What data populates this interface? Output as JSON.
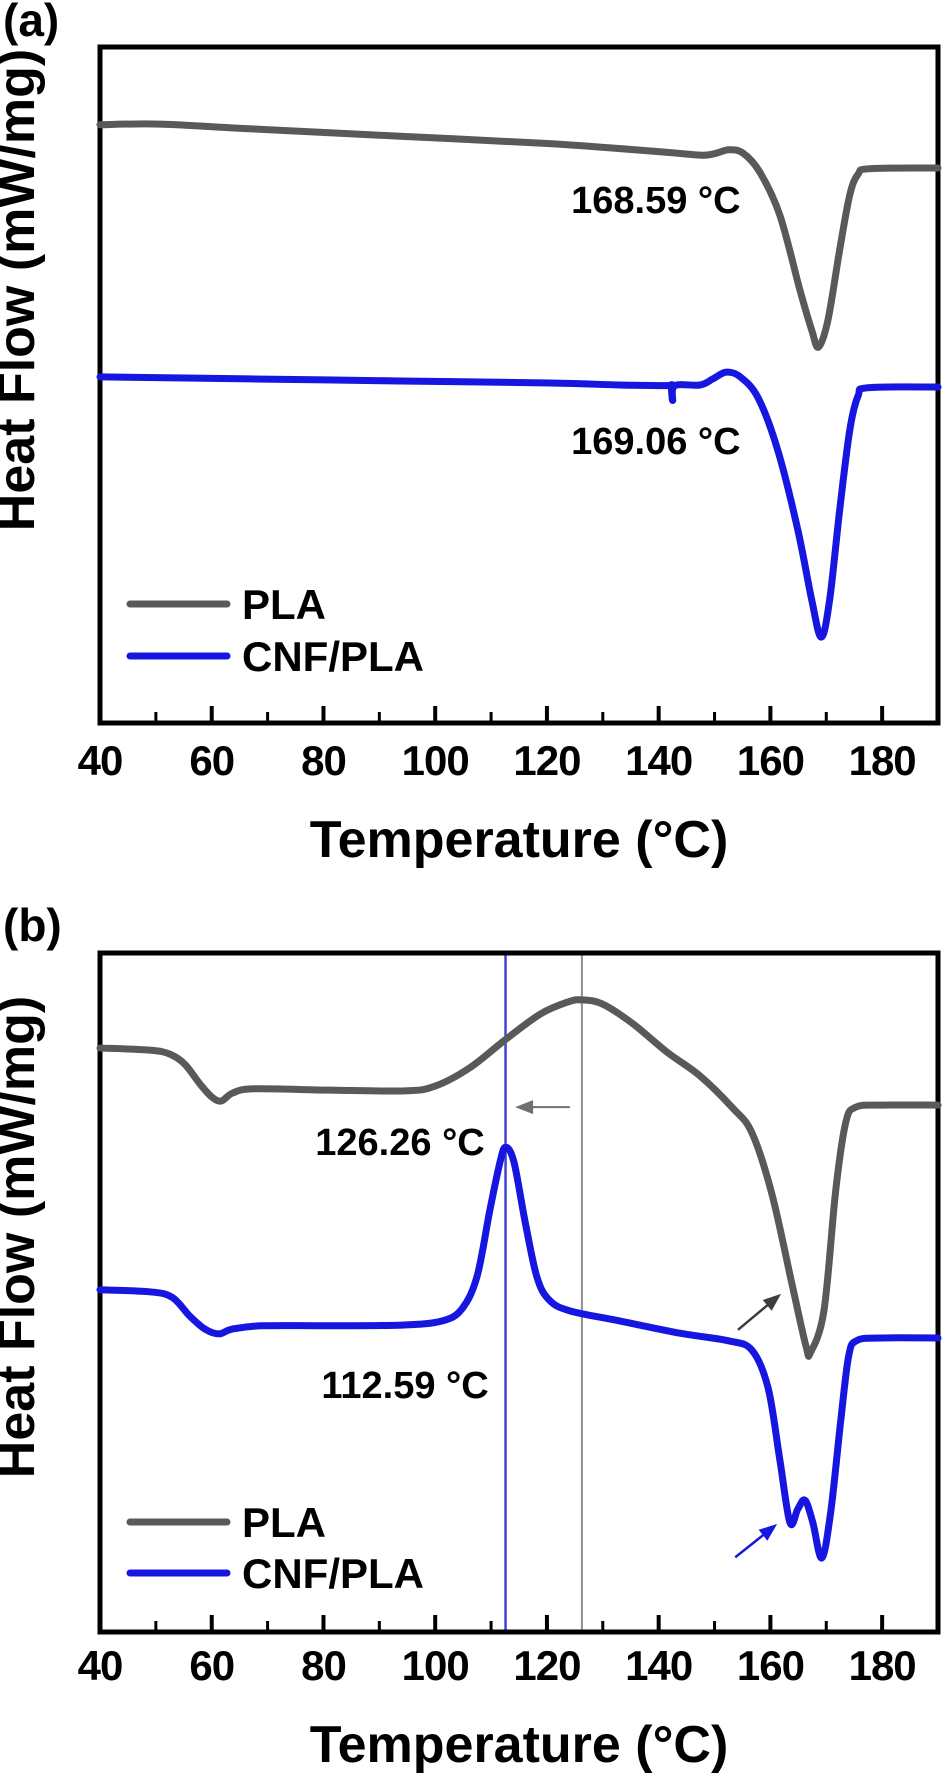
{
  "figure": {
    "description_visible_text_only": true,
    "background": "#ffffff",
    "series_colors": {
      "PLA": "#595959",
      "CNF/PLA": "#1616e0"
    }
  },
  "chart_data": [
    {
      "id": "a",
      "type": "line",
      "panel_label": "(a)",
      "xlabel": "Temperature (°C)",
      "ylabel": "Heat Flow (mW/mg)",
      "xlim": [
        40,
        190
      ],
      "x_major_ticks": [
        40,
        60,
        80,
        100,
        120,
        140,
        160,
        180
      ],
      "x_minor_ticks": [
        50,
        70,
        90,
        110,
        130,
        150,
        170,
        190
      ],
      "grid": false,
      "legend_position": "lower-left",
      "legend": [
        {
          "label": "PLA",
          "color": "#595959"
        },
        {
          "label": "CNF/PLA",
          "color": "#1616e0"
        }
      ],
      "annotations": [
        {
          "text": "168.59 °C",
          "color": "#595959",
          "t": 139.5,
          "v": 0.774
        },
        {
          "text": "169.06 °C",
          "color": "#1616e0",
          "t": 139.5,
          "v": 0.417
        }
      ],
      "vertical_lines": [],
      "arrows": [],
      "series": [
        {
          "name": "PLA",
          "color": "#595959",
          "points_t_v": [
            [
              40,
              0.885
            ],
            [
              50.7,
              0.886
            ],
            [
              66.8,
              0.879
            ],
            [
              93.7,
              0.868
            ],
            [
              120.5,
              0.857
            ],
            [
              140.2,
              0.845
            ],
            [
              147.4,
              0.84
            ],
            [
              149.9,
              0.842
            ],
            [
              152.6,
              0.848
            ],
            [
              155.1,
              0.843
            ],
            [
              158.1,
              0.815
            ],
            [
              161.7,
              0.751
            ],
            [
              165.3,
              0.64
            ],
            [
              167.4,
              0.581
            ],
            [
              168.6,
              0.556
            ],
            [
              170.3,
              0.596
            ],
            [
              172.4,
              0.7
            ],
            [
              174.2,
              0.781
            ],
            [
              175.7,
              0.812
            ],
            [
              177.8,
              0.82
            ],
            [
              190,
              0.821
            ]
          ]
        },
        {
          "name": "CNF/PLA",
          "color": "#1616e0",
          "points_t_v": [
            [
              40,
              0.512
            ],
            [
              66.8,
              0.509
            ],
            [
              93.7,
              0.506
            ],
            [
              120.5,
              0.503
            ],
            [
              133.1,
              0.5
            ],
            [
              141.7,
              0.499
            ],
            [
              142.2,
              0.499
            ],
            [
              142.5,
              0.477
            ],
            [
              142.9,
              0.499
            ],
            [
              147.4,
              0.5
            ],
            [
              149.7,
              0.509
            ],
            [
              152.1,
              0.519
            ],
            [
              154.6,
              0.512
            ],
            [
              157.8,
              0.481
            ],
            [
              161.3,
              0.404
            ],
            [
              164.9,
              0.286
            ],
            [
              167.4,
              0.182
            ],
            [
              169.1,
              0.127
            ],
            [
              170.6,
              0.182
            ],
            [
              172.4,
              0.315
            ],
            [
              174.2,
              0.433
            ],
            [
              175.7,
              0.484
            ],
            [
              177.5,
              0.496
            ],
            [
              190,
              0.497
            ]
          ]
        }
      ]
    },
    {
      "id": "b",
      "type": "line",
      "panel_label": "(b)",
      "xlabel": "Temperature (°C)",
      "ylabel": "Heat Flow (mW/mg)",
      "xlim": [
        40,
        190
      ],
      "x_major_ticks": [
        40,
        60,
        80,
        100,
        120,
        140,
        160,
        180
      ],
      "x_minor_ticks": [
        50,
        70,
        90,
        110,
        130,
        150,
        170,
        190
      ],
      "grid": false,
      "legend_position": "lower-left",
      "legend": [
        {
          "label": "PLA",
          "color": "#595959"
        },
        {
          "label": "CNF/PLA",
          "color": "#1616e0"
        }
      ],
      "annotations": [
        {
          "text": "126.26 °C",
          "color": "#6b6b6b",
          "t": 93.7,
          "v": 0.722
        },
        {
          "text": "112.59 °C",
          "color": "#1616e0",
          "t": 94.6,
          "v": 0.364
        }
      ],
      "vertical_lines": [
        {
          "value": 112.59,
          "color": "#4242d8",
          "width": 2.5
        },
        {
          "value": 126.26,
          "color": "#909090",
          "width": 2
        }
      ],
      "arrows": [
        {
          "from_t_v": [
            124.1,
            0.773
          ],
          "to_t_v": [
            114.3,
            0.773
          ],
          "color": "#707070",
          "width": 2
        },
        {
          "from_t_v": [
            154.2,
            0.445
          ],
          "to_t_v": [
            161.9,
            0.498
          ],
          "color": "#3d3d3d",
          "width": 2.5
        },
        {
          "from_t_v": [
            153.7,
            0.11
          ],
          "to_t_v": [
            161.2,
            0.159
          ],
          "color": "#1616e0",
          "width": 2.5
        }
      ],
      "series": [
        {
          "name": "PLA",
          "color": "#595959",
          "points_t_v": [
            [
              40,
              0.86
            ],
            [
              48.9,
              0.857
            ],
            [
              52.5,
              0.851
            ],
            [
              55.2,
              0.836
            ],
            [
              57.9,
              0.807
            ],
            [
              60,
              0.788
            ],
            [
              61.7,
              0.782
            ],
            [
              63.8,
              0.794
            ],
            [
              67.7,
              0.8
            ],
            [
              81.2,
              0.798
            ],
            [
              94.6,
              0.797
            ],
            [
              100,
              0.804
            ],
            [
              106.2,
              0.831
            ],
            [
              112.5,
              0.872
            ],
            [
              118.8,
              0.91
            ],
            [
              123.8,
              0.928
            ],
            [
              126.3,
              0.931
            ],
            [
              129.9,
              0.925
            ],
            [
              135.2,
              0.897
            ],
            [
              141.5,
              0.854
            ],
            [
              147.4,
              0.819
            ],
            [
              153.1,
              0.773
            ],
            [
              156.7,
              0.735
            ],
            [
              160.3,
              0.644
            ],
            [
              163.9,
              0.511
            ],
            [
              166.4,
              0.42
            ],
            [
              167.2,
              0.412
            ],
            [
              169.6,
              0.474
            ],
            [
              171.7,
              0.651
            ],
            [
              173.5,
              0.751
            ],
            [
              175.3,
              0.773
            ],
            [
              179.6,
              0.776
            ],
            [
              190,
              0.776
            ]
          ]
        },
        {
          "name": "CNF/PLA",
          "color": "#1616e0",
          "points_t_v": [
            [
              40,
              0.504
            ],
            [
              48.9,
              0.501
            ],
            [
              52.9,
              0.493
            ],
            [
              56.1,
              0.465
            ],
            [
              58.8,
              0.446
            ],
            [
              61.3,
              0.439
            ],
            [
              63.6,
              0.446
            ],
            [
              69,
              0.451
            ],
            [
              81.2,
              0.451
            ],
            [
              94.1,
              0.452
            ],
            [
              101.2,
              0.458
            ],
            [
              104.8,
              0.476
            ],
            [
              107.5,
              0.524
            ],
            [
              109.8,
              0.622
            ],
            [
              111.6,
              0.692
            ],
            [
              112.6,
              0.714
            ],
            [
              114.1,
              0.692
            ],
            [
              116.1,
              0.604
            ],
            [
              118.2,
              0.523
            ],
            [
              120.4,
              0.489
            ],
            [
              124.1,
              0.473
            ],
            [
              133.1,
              0.458
            ],
            [
              143.8,
              0.44
            ],
            [
              152.4,
              0.429
            ],
            [
              156.7,
              0.415
            ],
            [
              159.6,
              0.359
            ],
            [
              161.7,
              0.253
            ],
            [
              163.5,
              0.161
            ],
            [
              164.9,
              0.181
            ],
            [
              166.2,
              0.194
            ],
            [
              167.6,
              0.161
            ],
            [
              169.2,
              0.109
            ],
            [
              170.8,
              0.177
            ],
            [
              172.6,
              0.312
            ],
            [
              174,
              0.406
            ],
            [
              175.4,
              0.429
            ],
            [
              179.6,
              0.433
            ],
            [
              190,
              0.433
            ]
          ]
        }
      ]
    }
  ]
}
